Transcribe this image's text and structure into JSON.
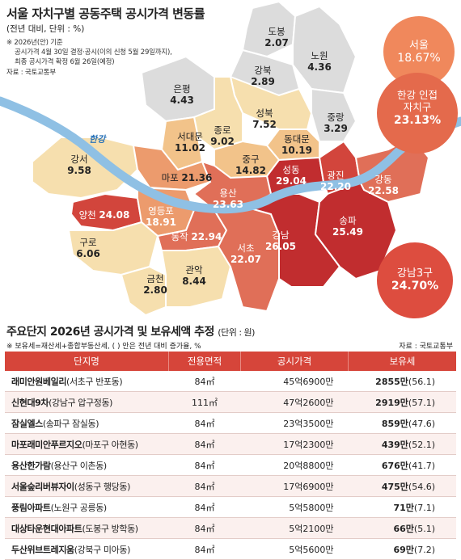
{
  "title": "서울 자치구별 공동주택 공시가격 변동률",
  "subtitle": "(전년 대비, 단위 : %)",
  "notes": [
    "※ 2026년(안) 기준",
    "공시가격 4월 30일 결정·공시(이의 신청 5월 29일까지),",
    "최종 공시가격 확정 6월 26일(예정)",
    "자료 : 국토교통부"
  ],
  "river_label": "한강",
  "districts": {
    "dobong": {
      "name": "도봉",
      "value": "2.07"
    },
    "nowon": {
      "name": "노원",
      "value": "4.36"
    },
    "gangbuk": {
      "name": "강북",
      "value": "2.89"
    },
    "eunpyeong": {
      "name": "은평",
      "value": "4.43"
    },
    "seongbuk": {
      "name": "성북",
      "value": "7.52"
    },
    "jungnang": {
      "name": "중랑",
      "value": "3.29"
    },
    "jongno": {
      "name": "종로",
      "value": "9.02"
    },
    "seodaemun": {
      "name": "서대문",
      "value": "11.02"
    },
    "dongdaemun": {
      "name": "동대문",
      "value": "10.19"
    },
    "junggu": {
      "name": "중구",
      "value": "14.82"
    },
    "gangseo": {
      "name": "강서",
      "value": "9.58"
    },
    "mapo": {
      "name": "마포",
      "value": "21.36"
    },
    "seongdong": {
      "name": "성동",
      "value": "29.04"
    },
    "gwangjin": {
      "name": "광진",
      "value": "22.20"
    },
    "gangdong": {
      "name": "강동",
      "value": "22.58"
    },
    "yongsan": {
      "name": "용산",
      "value": "23.63"
    },
    "yangcheon": {
      "name": "양천",
      "value": "24.08"
    },
    "yeongdeungpo": {
      "name": "영등포",
      "value": "18.91"
    },
    "guro": {
      "name": "구로",
      "value": "6.06"
    },
    "dongjak": {
      "name": "동작",
      "value": "22.94"
    },
    "gangnam": {
      "name": "강남",
      "value": "26.05"
    },
    "songpa": {
      "name": "송파",
      "value": "25.49"
    },
    "seocho": {
      "name": "서초",
      "value": "22.07"
    },
    "geumcheon": {
      "name": "금천",
      "value": "2.80"
    },
    "gwanak": {
      "name": "관악",
      "value": "8.44"
    }
  },
  "bubbles": {
    "seoul": {
      "label": "서울",
      "value": "18.67%"
    },
    "hangang": {
      "label1": "한강 인접",
      "label2": "자치구",
      "value": "23.13%"
    },
    "gangnam3": {
      "label": "강남3구",
      "value": "24.70%"
    }
  },
  "table": {
    "title": "주요단지 2026년 공시가격 및 보유세액 추정",
    "unit": "(단위 : 원)",
    "note": "※ 보유세=재산세+종합부동산세, ( ) 안은 전년 대비 증가율, %",
    "source": "자료 : 국토교통부",
    "headers": [
      "단지명",
      "전용면적",
      "공시가격",
      "보유세"
    ],
    "rows": [
      {
        "name": "래미안원베일리",
        "loc": "(서초구 반포동)",
        "area": "84㎡",
        "price": "45억6900만",
        "tax": "2855만",
        "pct": "(56.1)"
      },
      {
        "name": "신현대9차",
        "loc": "(강남구 압구정동)",
        "area": "111㎡",
        "price": "47억2600만",
        "tax": "2919만",
        "pct": "(57.1)"
      },
      {
        "name": "잠실엘스",
        "loc": "(송파구 잠실동)",
        "area": "84㎡",
        "price": "23억3500만",
        "tax": "859만",
        "pct": "(47.6)"
      },
      {
        "name": "마포래미안푸르지오",
        "loc": "(마포구 아현동)",
        "area": "84㎡",
        "price": "17억2300만",
        "tax": "439만",
        "pct": "(52.1)"
      },
      {
        "name": "용산한가람",
        "loc": "(용산구 이촌동)",
        "area": "84㎡",
        "price": "20억8800만",
        "tax": "676만",
        "pct": "(41.7)"
      },
      {
        "name": "서울숲리버뷰자이",
        "loc": "(성동구 행당동)",
        "area": "84㎡",
        "price": "17억6900만",
        "tax": "475만",
        "pct": "(54.6)"
      },
      {
        "name": "풍림아파트",
        "loc": "(노원구 공릉동)",
        "area": "84㎡",
        "price": "5억5800만",
        "tax": "71만",
        "pct": "(7.1)"
      },
      {
        "name": "대상타운현대아파트",
        "loc": "(도봉구 방학동)",
        "area": "84㎡",
        "price": "5억2100만",
        "tax": "66만",
        "pct": "(5.1)"
      },
      {
        "name": "두산위브트레지움",
        "loc": "(강북구 미아동)",
        "area": "84㎡",
        "price": "5억5600만",
        "tax": "69만",
        "pct": "(7.2)"
      }
    ]
  },
  "colors": {
    "light_gray": "#dcdcdc",
    "pale": "#f6dfae",
    "light": "#f2c38a",
    "mid": "#ec9b6d",
    "strong": "#e06f58",
    "deep": "#d2453c",
    "deepest": "#c12d2f",
    "river": "#8fc0e4",
    "accent": "#d6453a"
  }
}
